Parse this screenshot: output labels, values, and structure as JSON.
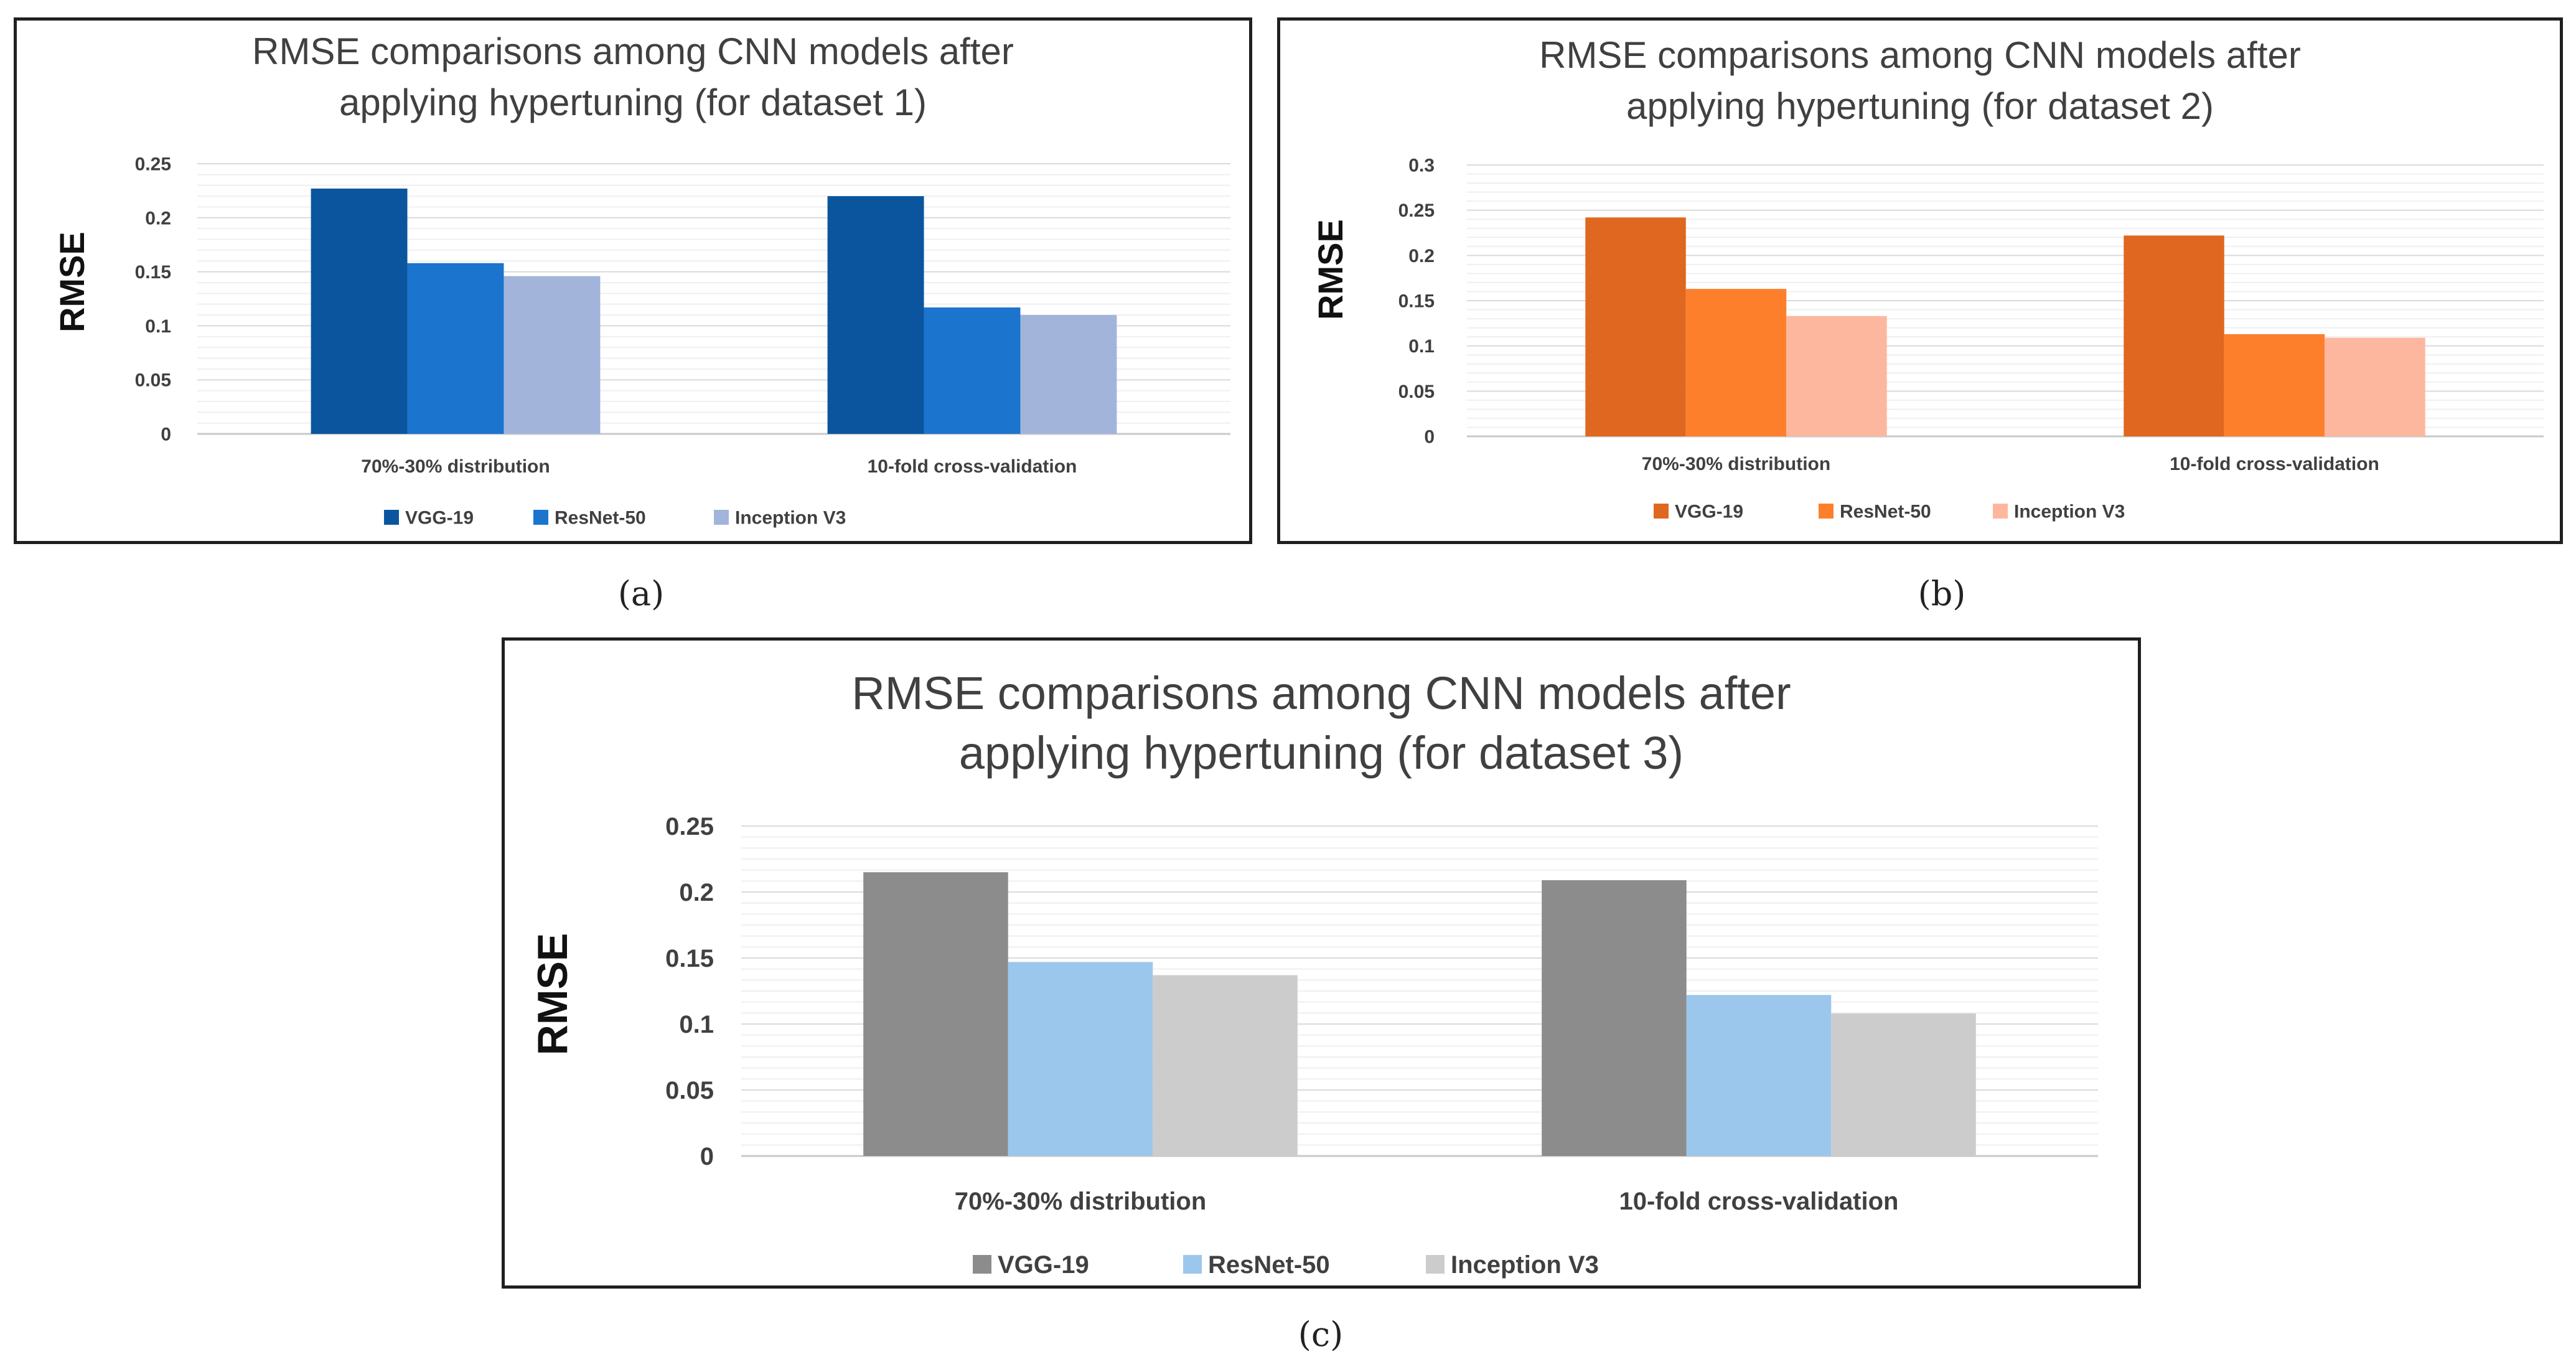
{
  "chart_data": [
    {
      "type": "bar",
      "title_lines": [
        "RMSE comparisons among CNN models after",
        "applying hypertuning (for dataset 1)"
      ],
      "xlabel": "",
      "ylabel": "RMSE",
      "categories": [
        "70%-30% distribution",
        "10-fold cross-validation"
      ],
      "yticks": [
        "0",
        "0.05",
        "0.1",
        "0.15",
        "0.2",
        "0.25"
      ],
      "ylim": [
        0,
        0.25
      ],
      "grid": true,
      "legend_position": "bottom",
      "series": [
        {
          "name": "VGG-19",
          "color": "#0b559f",
          "values": [
            0.227,
            0.22
          ]
        },
        {
          "name": "ResNet-50",
          "color": "#1b74cd",
          "values": [
            0.158,
            0.117
          ]
        },
        {
          "name": "Inception V3",
          "color": "#a3b4db",
          "values": [
            0.146,
            0.11
          ]
        }
      ]
    },
    {
      "type": "bar",
      "title_lines": [
        "RMSE comparisons among CNN models after",
        "applying hypertuning (for dataset 2)"
      ],
      "xlabel": "",
      "ylabel": "RMSE",
      "categories": [
        "70%-30% distribution",
        "10-fold cross-validation"
      ],
      "yticks": [
        "0",
        "0.05",
        "0.1",
        "0.15",
        "0.2",
        "0.25",
        "0.3"
      ],
      "ylim": [
        0,
        0.3
      ],
      "grid": true,
      "legend_position": "bottom",
      "series": [
        {
          "name": "VGG-19",
          "color": "#e0671f",
          "values": [
            0.242,
            0.222
          ]
        },
        {
          "name": "ResNet-50",
          "color": "#fd7f2c",
          "values": [
            0.163,
            0.113
          ]
        },
        {
          "name": "Inception V3",
          "color": "#fdb79e",
          "values": [
            0.133,
            0.109
          ]
        }
      ]
    },
    {
      "type": "bar",
      "title_lines": [
        "RMSE comparisons among CNN models after",
        "applying hypertuning (for dataset 3)"
      ],
      "xlabel": "",
      "ylabel": "RMSE",
      "categories": [
        "70%-30% distribution",
        "10-fold cross-validation"
      ],
      "yticks": [
        "0",
        "0.05",
        "0.1",
        "0.15",
        "0.2",
        "0.25"
      ],
      "ylim": [
        0,
        0.25
      ],
      "grid": true,
      "legend_position": "bottom",
      "series": [
        {
          "name": "VGG-19",
          "color": "#8c8c8c",
          "values": [
            0.215,
            0.209
          ]
        },
        {
          "name": "ResNet-50",
          "color": "#9cc7ec",
          "values": [
            0.147,
            0.122
          ]
        },
        {
          "name": "Inception V3",
          "color": "#cccccc",
          "values": [
            0.137,
            0.108
          ]
        }
      ]
    }
  ],
  "captions": [
    "(a)",
    "(b)",
    "(c)"
  ]
}
